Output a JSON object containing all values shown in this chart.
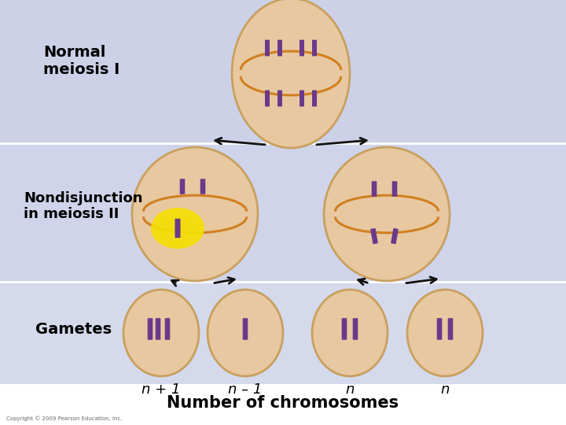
{
  "bg_color": "#d8daea",
  "row1_bg": "#cdd1e8",
  "row2_bg": "#d0d4ea",
  "row3_bg": "#d5d9ec",
  "cell_fill": "#e8c8a0",
  "cell_edge": "#c8a060",
  "chr_color": "#6a3a8a",
  "arrow_color": "#111111",
  "text_color": "#000000",
  "orange_color": "#d08020",
  "yellow_color": "#f5e000",
  "label_normal": "Normal\nmeiosis I",
  "label_nondisj": "Nondisjunction\nin meiosis II",
  "label_gametes": "Gametes",
  "gamete_labels": [
    "n + 1",
    "n – 1",
    "n",
    "n"
  ],
  "title": "Number of chromosomes",
  "copyright": "Copyright © 2009 Pearson Education, Inc.",
  "fig_width": 7.2,
  "fig_height": 5.4
}
